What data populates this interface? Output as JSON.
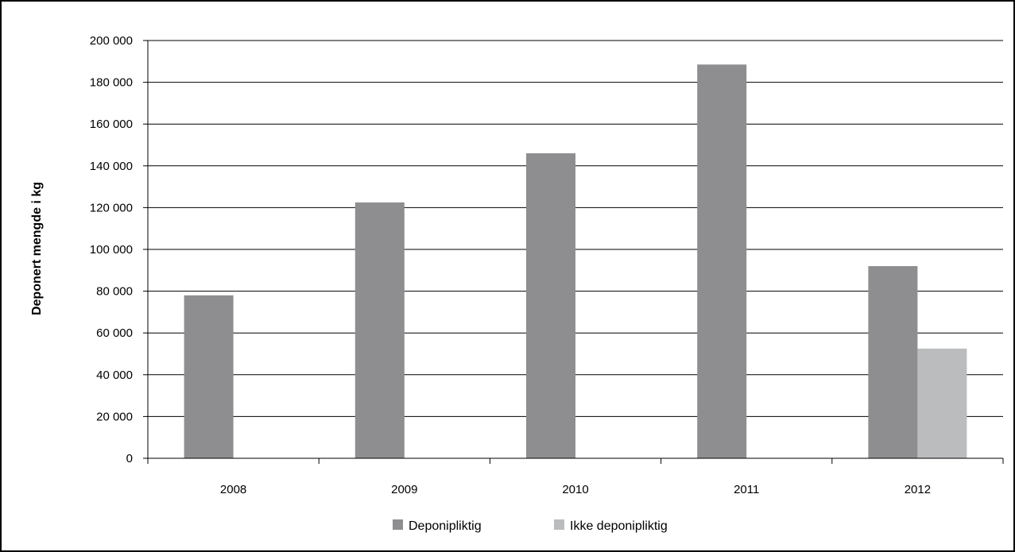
{
  "chart_data": {
    "type": "bar",
    "title": "",
    "xlabel": "",
    "ylabel": "Deponert mengde i kg",
    "categories": [
      "2008",
      "2009",
      "2010",
      "2011",
      "2012"
    ],
    "series": [
      {
        "name": "Deponipliktig",
        "color": "#8e8e90",
        "values": [
          78000,
          122500,
          146000,
          188500,
          92000
        ]
      },
      {
        "name": "Ikke deponipliktig",
        "color": "#bbbcbe",
        "values": [
          null,
          null,
          null,
          null,
          52500
        ]
      }
    ],
    "ylim": [
      0,
      200000
    ],
    "yticks": [
      0,
      20000,
      40000,
      60000,
      80000,
      100000,
      120000,
      140000,
      160000,
      180000,
      200000
    ],
    "ytick_labels": [
      "0",
      "20 000",
      "40 000",
      "60 000",
      "80 000",
      "100 000",
      "120 000",
      "140 000",
      "160 000",
      "180 000",
      "200 000"
    ],
    "grid": true,
    "legend_position": "bottom"
  }
}
